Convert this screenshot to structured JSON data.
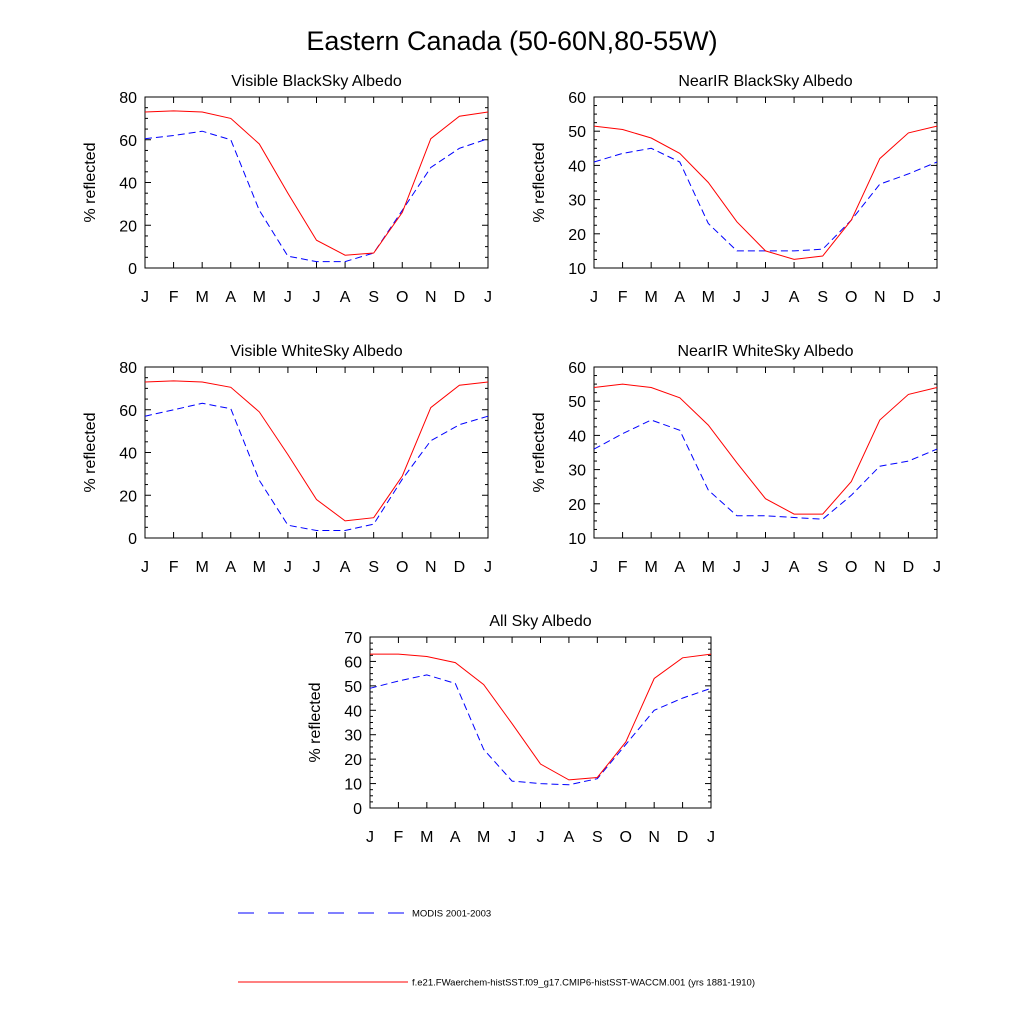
{
  "title": "Eastern Canada (50-60N,80-55W)",
  "months": [
    "J",
    "F",
    "M",
    "A",
    "M",
    "J",
    "J",
    "A",
    "S",
    "O",
    "N",
    "D",
    "J"
  ],
  "legend": {
    "modis_label": "MODIS 2001-2003",
    "model_label": "f.e21.FWaerchem-histSST.f09_g17.CMIP6-histSST-WACCM.001 (yrs 1881-1910)"
  },
  "colors": {
    "modis": "#0000ff",
    "model": "#ff0000"
  },
  "chart_data": [
    {
      "type": "line",
      "title": "Visible BlackSky Albedo",
      "ylabel": "% reflected",
      "ylim": [
        0,
        80
      ],
      "yticks": [
        0,
        20,
        40,
        60,
        80
      ],
      "series": [
        {
          "name": "MODIS 2001-2003",
          "values": [
            60.5,
            62,
            64,
            60,
            27,
            5.5,
            3,
            3,
            7,
            27,
            47,
            56,
            60.5
          ]
        },
        {
          "name": "f.e21.FWaerchem-histSST.f09_g17.CMIP6-histSST-WACCM.001 (yrs 1881-1910)",
          "values": [
            73,
            73.5,
            73,
            70,
            58,
            35,
            13,
            6,
            7,
            26,
            60.5,
            71,
            73
          ]
        }
      ]
    },
    {
      "type": "line",
      "title": "NearIR BlackSky Albedo",
      "ylabel": "% reflected",
      "ylim": [
        10,
        60
      ],
      "yticks": [
        10,
        20,
        30,
        40,
        50,
        60
      ],
      "series": [
        {
          "name": "MODIS 2001-2003",
          "values": [
            41,
            43.5,
            45,
            41,
            23,
            15,
            15,
            15,
            15.5,
            24,
            34.5,
            37.5,
            41
          ]
        },
        {
          "name": "f.e21.FWaerchem-histSST.f09_g17.CMIP6-histSST-WACCM.001 (yrs 1881-1910)",
          "values": [
            51.5,
            50.5,
            48,
            43.5,
            35,
            23.5,
            15,
            12.5,
            13.5,
            24,
            42,
            49.5,
            51.5
          ]
        }
      ]
    },
    {
      "type": "line",
      "title": "Visible WhiteSky Albedo",
      "ylabel": "% reflected",
      "ylim": [
        0,
        80
      ],
      "yticks": [
        0,
        20,
        40,
        60,
        80
      ],
      "series": [
        {
          "name": "MODIS 2001-2003",
          "values": [
            57,
            60,
            63,
            60.5,
            27,
            6,
            3.5,
            3.5,
            6.5,
            27.5,
            45.5,
            53,
            57
          ]
        },
        {
          "name": "f.e21.FWaerchem-histSST.f09_g17.CMIP6-histSST-WACCM.001 (yrs 1881-1910)",
          "values": [
            73,
            73.5,
            73,
            70.5,
            59,
            39,
            18,
            8,
            9.5,
            29,
            61,
            71.5,
            73
          ]
        }
      ]
    },
    {
      "type": "line",
      "title": "NearIR WhiteSky Albedo",
      "ylabel": "% reflected",
      "ylim": [
        10,
        60
      ],
      "yticks": [
        10,
        20,
        30,
        40,
        50,
        60
      ],
      "series": [
        {
          "name": "MODIS 2001-2003",
          "values": [
            36,
            40.5,
            44.5,
            41.5,
            24,
            16.5,
            16.5,
            16,
            15.5,
            22.5,
            31,
            32.5,
            36
          ]
        },
        {
          "name": "f.e21.FWaerchem-histSST.f09_g17.CMIP6-histSST-WACCM.001 (yrs 1881-1910)",
          "values": [
            54,
            55,
            54,
            51,
            43,
            32,
            21.5,
            17,
            17,
            26.5,
            44.5,
            52,
            54
          ]
        }
      ]
    },
    {
      "type": "line",
      "title": "All Sky Albedo",
      "ylabel": "% reflected",
      "ylim": [
        0,
        70
      ],
      "yticks": [
        0,
        10,
        20,
        30,
        40,
        50,
        60,
        70
      ],
      "series": [
        {
          "name": "MODIS 2001-2003",
          "values": [
            49,
            52,
            54.5,
            51,
            24,
            11,
            10,
            9.5,
            12,
            26,
            40,
            45,
            49
          ]
        },
        {
          "name": "f.e21.FWaerchem-histSST.f09_g17.CMIP6-histSST-WACCM.001 (yrs 1881-1910)",
          "values": [
            63,
            63,
            62,
            59.5,
            50.5,
            34.5,
            18,
            11.5,
            12.5,
            27,
            53,
            61.5,
            63
          ]
        }
      ]
    }
  ]
}
